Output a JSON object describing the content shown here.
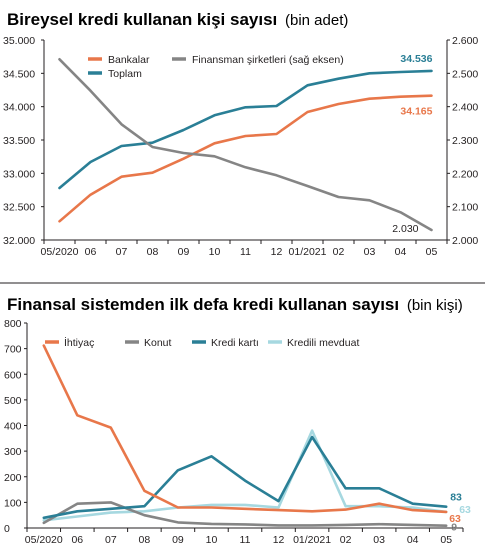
{
  "chart_data": [
    {
      "type": "line",
      "title": "Bireysel kredi kullanan kişi sayısı",
      "subtitle": "(bin adet)",
      "x": [
        "05/2020",
        "06",
        "07",
        "08",
        "09",
        "10",
        "11",
        "12",
        "01/2021",
        "02",
        "03",
        "04",
        "05"
      ],
      "ylim": [
        32000,
        35000
      ],
      "yticks": [
        "32.000",
        "32.500",
        "33.000",
        "33.500",
        "34.000",
        "34.500",
        "35.000"
      ],
      "y2lim": [
        2000,
        2600
      ],
      "y2ticks": [
        "2.000",
        "2.100",
        "2.200",
        "2.300",
        "2.400",
        "2.500",
        "2.600"
      ],
      "grid": false,
      "legend_position": "top-left",
      "series": [
        {
          "name": "Bankalar",
          "color": "#e8774a",
          "axis": "left",
          "values": [
            32280,
            32680,
            32950,
            33010,
            33220,
            33450,
            33560,
            33590,
            33920,
            34040,
            34120,
            34150,
            34165
          ]
        },
        {
          "name": "Toplam",
          "color": "#2a7f96",
          "axis": "left",
          "values": [
            32780,
            33170,
            33410,
            33460,
            33650,
            33870,
            33990,
            34010,
            34320,
            34420,
            34500,
            34520,
            34536
          ]
        },
        {
          "name": "Finansman şirketleri (sağ eksen)",
          "color": "#858585",
          "axis": "right",
          "values": [
            2542,
            2448,
            2347,
            2279,
            2261,
            2251,
            2218,
            2194,
            2162,
            2129,
            2119,
            2083,
            2030
          ]
        }
      ],
      "data_labels": [
        {
          "series": "Toplam",
          "text": "34.536"
        },
        {
          "series": "Bankalar",
          "text": "34.165"
        },
        {
          "series": "Finansman şirketleri (sağ eksen)",
          "text": "2.030"
        }
      ]
    },
    {
      "type": "line",
      "title": "Finansal sistemden ilk defa kredi kullanan sayısı",
      "subtitle": "(bin kişi)",
      "x": [
        "05/2020",
        "06",
        "07",
        "08",
        "09",
        "10",
        "11",
        "12",
        "01/2021",
        "02",
        "03",
        "04",
        "05"
      ],
      "ylim": [
        0,
        800
      ],
      "yticks": [
        "0",
        "100",
        "200",
        "300",
        "400",
        "500",
        "600",
        "700",
        "800"
      ],
      "grid": false,
      "legend_position": "top",
      "series": [
        {
          "name": "İhtiyaç",
          "color": "#e8774a",
          "values": [
            712,
            440,
            392,
            145,
            80,
            80,
            75,
            70,
            65,
            72,
            95,
            70,
            63
          ]
        },
        {
          "name": "Konut",
          "color": "#858585",
          "values": [
            20,
            95,
            100,
            50,
            22,
            16,
            14,
            10,
            10,
            12,
            15,
            12,
            9
          ]
        },
        {
          "name": "Kredi kartı",
          "color": "#2a7f96",
          "values": [
            40,
            65,
            75,
            85,
            225,
            280,
            185,
            105,
            355,
            155,
            155,
            95,
            83
          ]
        },
        {
          "name": "Kredili mevduat",
          "color": "#a6d8e0",
          "values": [
            30,
            45,
            60,
            65,
            80,
            90,
            90,
            80,
            380,
            85,
            85,
            80,
            63
          ]
        }
      ],
      "data_labels": [
        {
          "series": "Kredi kartı",
          "text": "83"
        },
        {
          "series": "Kredili mevduat",
          "text": "63"
        },
        {
          "series": "İhtiyaç",
          "text": "63"
        },
        {
          "series": "Konut",
          "text": "9"
        }
      ]
    }
  ]
}
